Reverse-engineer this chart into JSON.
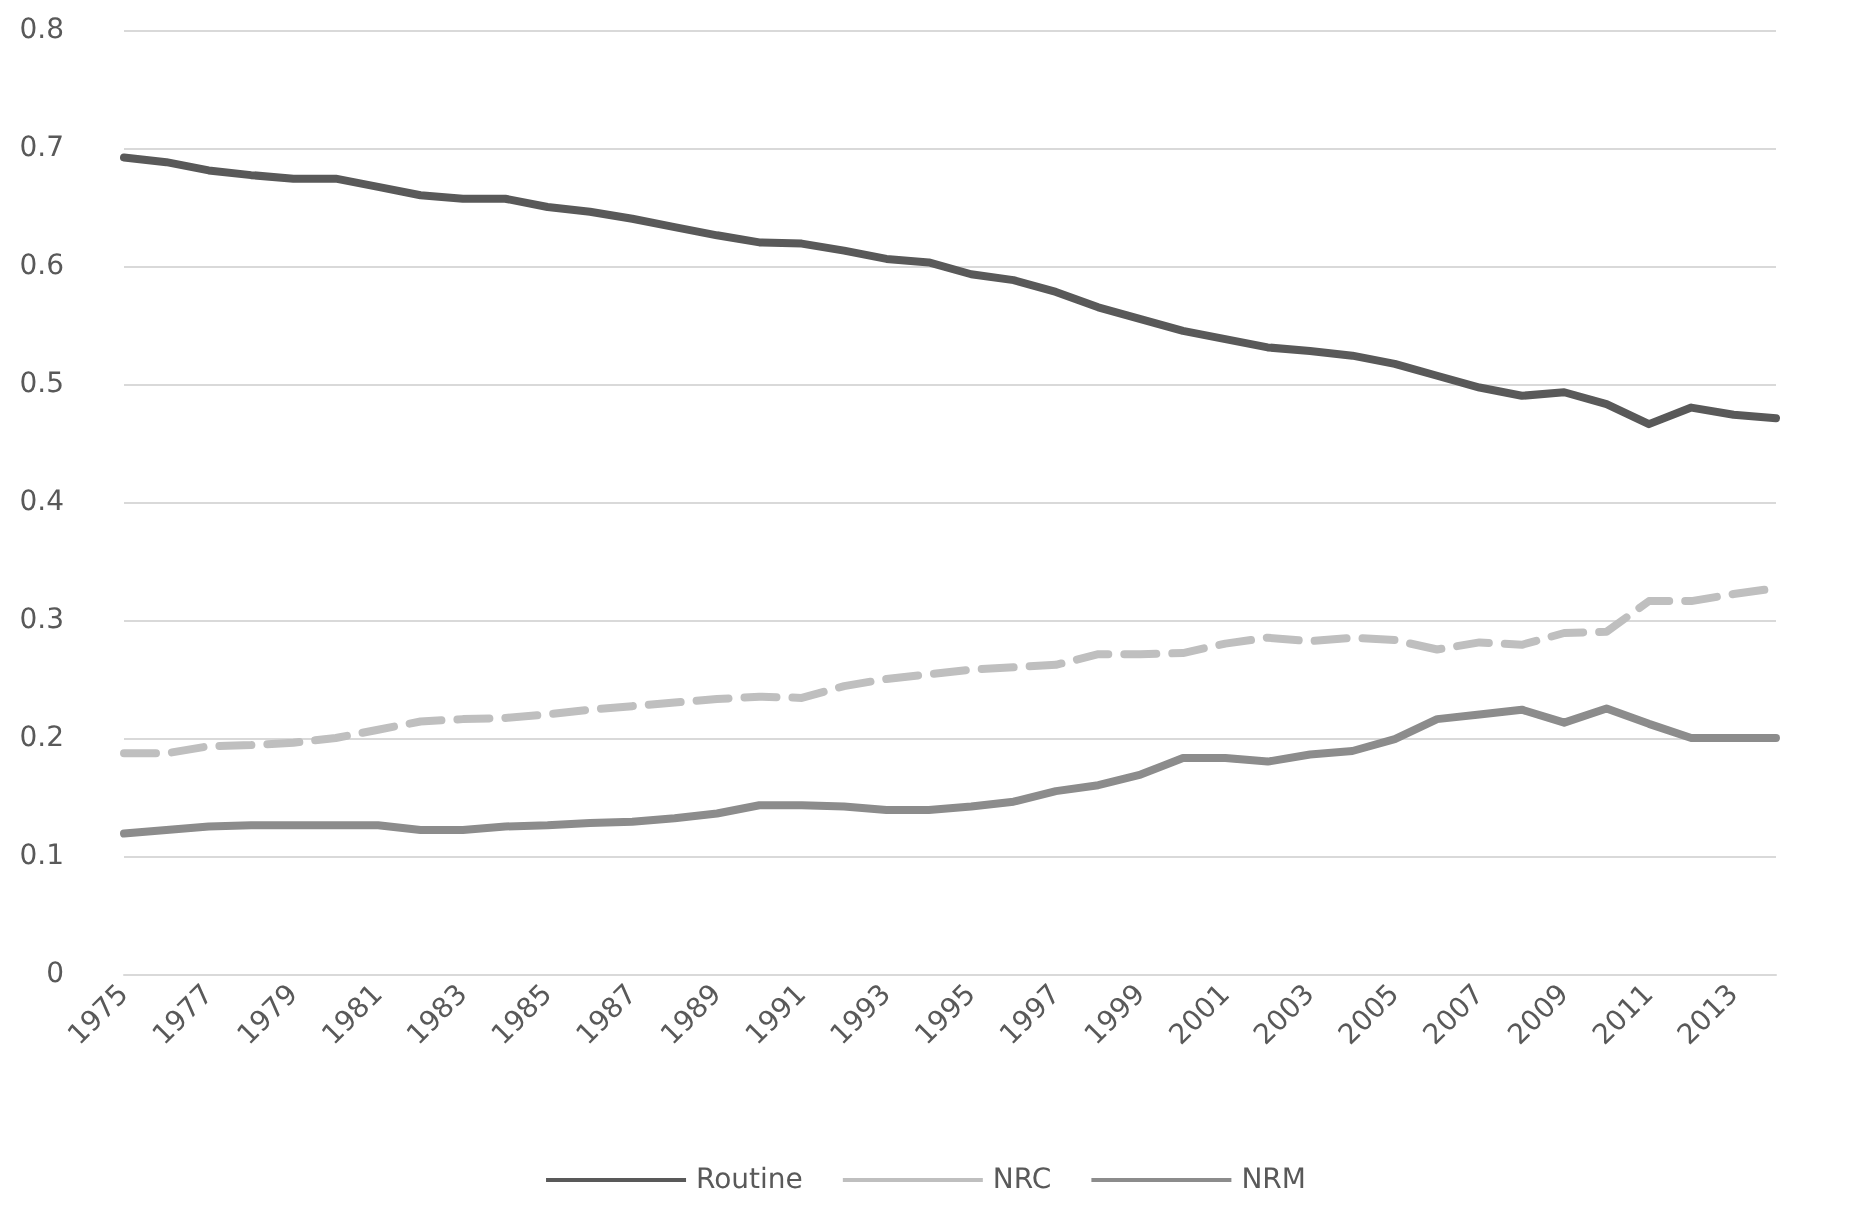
{
  "chart_data": {
    "type": "line",
    "categories": [
      "1975",
      null,
      "1977",
      null,
      "1979",
      null,
      "1981",
      null,
      "1983",
      null,
      "1985",
      null,
      "1987",
      null,
      "1989",
      null,
      "1991",
      null,
      "1993",
      null,
      "1995",
      null,
      "1997",
      null,
      "1999",
      null,
      "2001",
      null,
      "2003",
      null,
      "2005",
      null,
      "2007",
      null,
      "2009",
      null,
      "2011",
      null,
      "2013",
      null
    ],
    "series": [
      {
        "name": "Routine",
        "color": "#595959",
        "line_style": "solid",
        "values": [
          0.692,
          0.688,
          0.681,
          0.677,
          0.674,
          0.674,
          0.667,
          0.66,
          0.657,
          0.657,
          0.65,
          0.646,
          0.64,
          0.633,
          0.626,
          0.62,
          0.619,
          0.613,
          0.606,
          0.603,
          0.593,
          0.588,
          0.578,
          0.565,
          0.555,
          0.545,
          0.538,
          0.531,
          0.528,
          0.524,
          0.517,
          0.507,
          0.497,
          0.49,
          0.493,
          0.483,
          0.466,
          0.48,
          0.474,
          0.471
        ]
      },
      {
        "name": "NRC",
        "color": "#bfbfbf",
        "line_style": "dashed",
        "values": [
          0.187,
          0.187,
          0.193,
          0.194,
          0.196,
          0.2,
          0.207,
          0.214,
          0.216,
          0.217,
          0.22,
          0.224,
          0.227,
          0.23,
          0.233,
          0.235,
          0.234,
          0.244,
          0.25,
          0.254,
          0.258,
          0.26,
          0.262,
          0.271,
          0.271,
          0.272,
          0.28,
          0.285,
          0.282,
          0.285,
          0.283,
          0.275,
          0.281,
          0.279,
          0.289,
          0.29,
          0.316,
          0.316,
          0.322,
          0.327
        ]
      },
      {
        "name": "NRM",
        "color": "#8c8c8c",
        "line_style": "solid",
        "values": [
          0.119,
          0.122,
          0.125,
          0.126,
          0.126,
          0.126,
          0.126,
          0.122,
          0.122,
          0.125,
          0.126,
          0.128,
          0.129,
          0.132,
          0.136,
          0.143,
          0.143,
          0.142,
          0.139,
          0.139,
          0.142,
          0.146,
          0.155,
          0.16,
          0.169,
          0.183,
          0.183,
          0.18,
          0.186,
          0.189,
          0.199,
          0.216,
          0.22,
          0.224,
          0.213,
          0.225,
          0.212,
          0.2,
          0.2,
          0.2
        ]
      }
    ],
    "ylim": [
      0,
      0.8
    ],
    "yticks": [
      0,
      0.1,
      0.2,
      0.3,
      0.4,
      0.5,
      0.6,
      0.7,
      0.8
    ],
    "grid": "y",
    "legend": "bottom",
    "marker": "none"
  }
}
